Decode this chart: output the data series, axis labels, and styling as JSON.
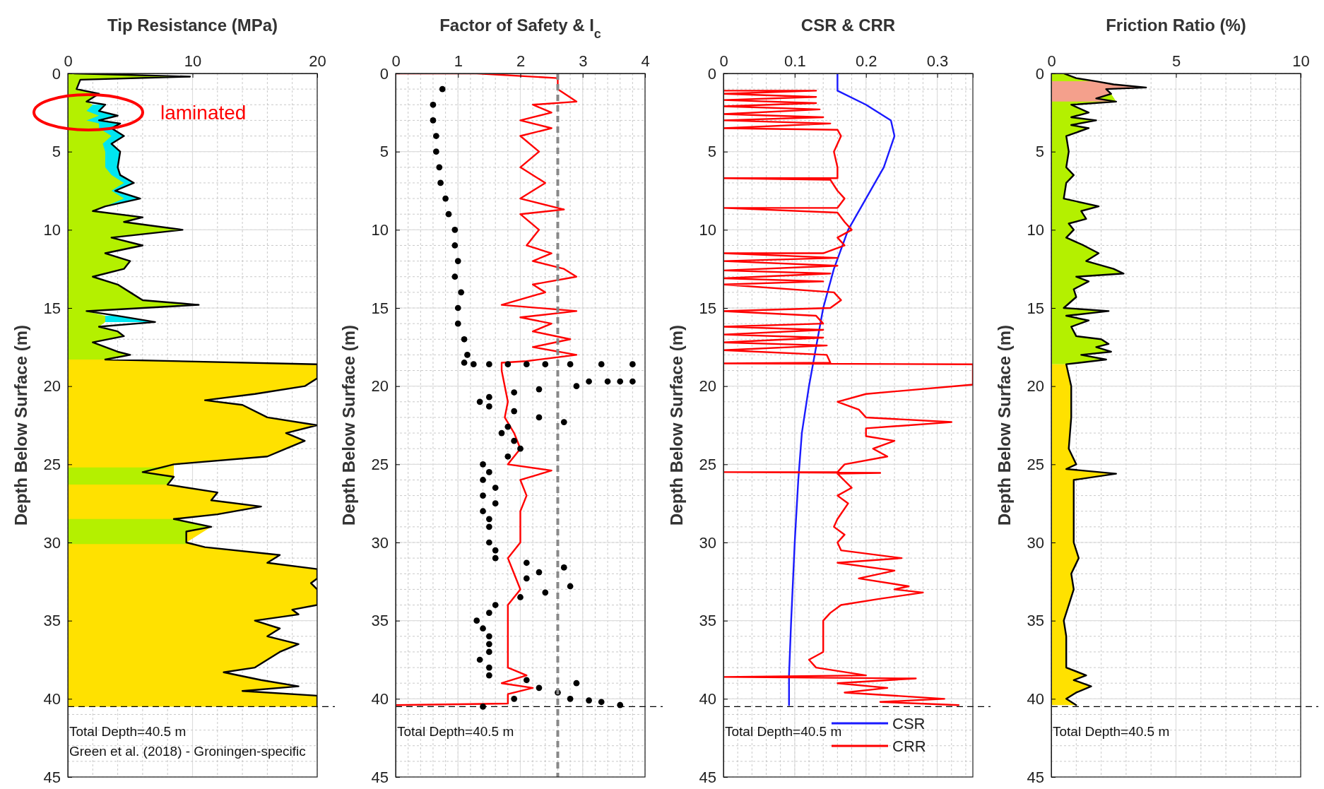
{
  "chart_data": [
    {
      "type": "area",
      "orientation": "horizontal",
      "title": "Tip Resistance (MPa)",
      "ylabel": "Depth Below Surface (m)",
      "xlim": [
        0,
        20
      ],
      "xticks": [
        0,
        10,
        20
      ],
      "ylim": [
        45,
        0
      ],
      "yticks": [
        0,
        5,
        10,
        15,
        20,
        25,
        30,
        35,
        40,
        45
      ],
      "grid": true,
      "ref_lines": [
        {
          "axis": "y",
          "value": 40.5,
          "color": "#000000",
          "line_style": "dashed"
        }
      ],
      "annotations": [
        "Total Depth=40.5 m",
        "Green et al. (2018) - Groningen-specific",
        "laminated"
      ],
      "series": [
        {
          "color": "#00e6f0",
          "values": [
            3,
            2.5,
            4,
            2.5,
            4.2,
            3.5,
            4.5,
            3.5,
            4.2,
            4,
            4.2,
            5.3,
            3.8,
            5.8,
            3
          ],
          "x": [
            2,
            2.4,
            2.7,
            3,
            3.2,
            3.5,
            4,
            4.5,
            5,
            6,
            6.5,
            7,
            7.5,
            8,
            8.5
          ]
        },
        {
          "color": "#00e6f0",
          "values": [
            4,
            7
          ],
          "x": [
            15.5,
            15.9
          ]
        },
        {
          "color": "#b4f000",
          "values": [
            0.5,
            9.8,
            1,
            0.7,
            2.5,
            1.5,
            2,
            1.5,
            2.5,
            1.5,
            2.5,
            2.5,
            3.5,
            2.8,
            3,
            3,
            3.5,
            4.5,
            3.5,
            4.5,
            3,
            2,
            6,
            4.5,
            9.2,
            3.5,
            6,
            3,
            5,
            4.5,
            2,
            4,
            5,
            6,
            10.5,
            1.5,
            3,
            3,
            2.5,
            4,
            4.5,
            2,
            4,
            5,
            3
          ],
          "x": [
            0,
            0.2,
            0.4,
            1,
            1.3,
            1.8,
            2,
            2.4,
            2.7,
            3,
            3.2,
            3.5,
            4,
            4.5,
            5,
            6,
            6.5,
            7,
            7.5,
            8,
            8.5,
            8.8,
            9.2,
            9.5,
            10,
            10.5,
            11,
            11.5,
            12,
            12.5,
            13,
            13.5,
            14,
            14.5,
            14.8,
            15.2,
            15.5,
            15.9,
            16.2,
            16.5,
            16.8,
            17.2,
            17.8,
            18,
            18.3
          ]
        },
        {
          "color": "#ffe100",
          "values": [
            3,
            20,
            20,
            19,
            15,
            11,
            14,
            16,
            20,
            17.5,
            19,
            17.5,
            16,
            8.5,
            8.5,
            8,
            12,
            11.5,
            15.5,
            12,
            8.5,
            11.5,
            9.5,
            11,
            17,
            16,
            20,
            20,
            19.5,
            20,
            20,
            18,
            18.5,
            15,
            17,
            16,
            18.5,
            17,
            16,
            15,
            12.5,
            15.5,
            18.5,
            14,
            20,
            20
          ],
          "x": [
            18.3,
            18.6,
            19.5,
            20,
            20.5,
            20.9,
            21.2,
            22,
            22.5,
            23,
            23.5,
            24,
            24.5,
            25,
            25.8,
            26.3,
            26.8,
            27.3,
            27.7,
            28.2,
            28.5,
            29,
            30,
            30.3,
            30.8,
            31.3,
            31.7,
            32.3,
            32.6,
            33,
            34,
            34.3,
            34.6,
            35,
            35.5,
            36,
            36.5,
            37,
            37.5,
            38,
            38.3,
            38.8,
            39.2,
            39.5,
            39.8,
            40.5
          ]
        },
        {
          "color": "#b4f000",
          "values": [
            8.5,
            6,
            8.5,
            8
          ],
          "x": [
            25.2,
            25.5,
            25.8,
            26.3
          ]
        },
        {
          "color": "#b4f000",
          "values": [
            8.5,
            11.5,
            9.5,
            9.5
          ],
          "x": [
            28.5,
            29,
            29.3,
            30.1
          ]
        },
        {
          "type": "line",
          "color": "#000000",
          "values": [
            0.5,
            9.8,
            1,
            0.7,
            2.5,
            1.5,
            3,
            2.5,
            4,
            2.5,
            4.2,
            3.5,
            4.5,
            3.5,
            4.2,
            4,
            4.2,
            5.3,
            3.8,
            5.8,
            3,
            2,
            6,
            4.5,
            9.2,
            3.5,
            6,
            3,
            5,
            4.5,
            2,
            4,
            5,
            6,
            10.5,
            1.5,
            4,
            7,
            2.5,
            4,
            4.5,
            2,
            4,
            5,
            3,
            20,
            20,
            19,
            15,
            11,
            14,
            16,
            20,
            17.5,
            19,
            17.5,
            16,
            8.5,
            6,
            8.5,
            8,
            12,
            11.5,
            15.5,
            12,
            8.5,
            11.5,
            9.5,
            9.5,
            11,
            17,
            16,
            20,
            20,
            19.5,
            20,
            20,
            18,
            18.5,
            15,
            17,
            16,
            18.5,
            17,
            16,
            15,
            12.5,
            15.5,
            18.5,
            14,
            20,
            20
          ],
          "x": [
            0,
            0.2,
            0.4,
            1,
            1.3,
            1.8,
            2,
            2.4,
            2.7,
            3,
            3.2,
            3.5,
            4,
            4.5,
            5,
            6,
            6.5,
            7,
            7.5,
            8,
            8.5,
            8.8,
            9.2,
            9.5,
            10,
            10.5,
            11,
            11.5,
            12,
            12.5,
            13,
            13.5,
            14,
            14.5,
            14.8,
            15.2,
            15.5,
            15.9,
            16.2,
            16.5,
            16.8,
            17.2,
            17.8,
            18,
            18.3,
            18.6,
            19.5,
            20,
            20.5,
            20.9,
            21.2,
            22,
            22.5,
            23,
            23.5,
            24,
            24.5,
            25,
            25.5,
            25.8,
            26.3,
            26.8,
            27.3,
            27.7,
            28.2,
            28.5,
            29,
            29.3,
            30,
            30.3,
            30.8,
            31.3,
            31.7,
            32.3,
            32.6,
            33,
            34,
            34.3,
            34.6,
            35,
            35.5,
            36,
            36.5,
            37,
            37.5,
            38,
            38.3,
            38.8,
            39.2,
            39.5,
            39.8,
            40.5
          ]
        }
      ]
    },
    {
      "type": "line",
      "title": "Factor of Safety & I$_{c}$",
      "ylabel": "Depth Below Surface (m)",
      "xlim": [
        0,
        4
      ],
      "xticks": [
        0,
        1,
        2,
        3,
        4
      ],
      "ylim": [
        45,
        0
      ],
      "yticks": [
        0,
        5,
        10,
        15,
        20,
        25,
        30,
        35,
        40,
        45
      ],
      "grid": true,
      "ref_lines": [
        {
          "axis": "y",
          "value": 40.5,
          "color": "#000000",
          "line_style": "dashed"
        },
        {
          "axis": "x",
          "value": 2.6,
          "color": "#888888",
          "line_style": "dashed"
        }
      ],
      "annotations": [
        "Total Depth=40.5 m"
      ],
      "series": [
        {
          "type": "scatter",
          "color": "#000000",
          "marker": "circle",
          "x": [
            0.75,
            0.6,
            0.6,
            0.65,
            0.65,
            0.7,
            0.72,
            0.8,
            0.85,
            0.95,
            0.95,
            1.0,
            0.95,
            1.05,
            1.0,
            1.0,
            1.1,
            1.15,
            1.1,
            1.25,
            1.5,
            1.8,
            2.1,
            2.4,
            2.8,
            3.3,
            3.8,
            3.1,
            3.4,
            3.6,
            3.8,
            2.9,
            2.3,
            1.9,
            1.5,
            1.35,
            1.5,
            1.9,
            2.3,
            2.7,
            1.8,
            1.7,
            1.9,
            2.0,
            1.8,
            1.4,
            1.5,
            1.4,
            1.6,
            1.4,
            1.6,
            1.4,
            1.5,
            1.5,
            1.5,
            1.6,
            1.6,
            2.1,
            2.7,
            2.3,
            2.1,
            2.8,
            2.4,
            2.0,
            1.6,
            1.5,
            1.3,
            1.4,
            1.5,
            1.5,
            1.5,
            1.35,
            1.5,
            1.5,
            2.1,
            2.9,
            2.3,
            2.6,
            1.9,
            2.8,
            3.1,
            3.3,
            3.6,
            1.4
          ],
          "values": [
            1,
            2,
            3,
            4,
            5,
            6,
            7,
            8,
            9,
            10,
            11,
            12,
            13,
            14,
            15,
            16,
            17,
            18,
            18.5,
            18.6,
            18.6,
            18.6,
            18.6,
            18.6,
            18.6,
            18.6,
            18.6,
            19.7,
            19.7,
            19.7,
            19.7,
            20,
            20.2,
            20.4,
            20.7,
            21,
            21.3,
            21.6,
            22,
            22.3,
            22.6,
            23,
            23.5,
            24,
            24.5,
            25,
            25.5,
            26,
            26.5,
            27,
            27.5,
            28,
            28.5,
            29,
            30,
            30.5,
            31,
            31.3,
            31.6,
            31.9,
            32.3,
            32.8,
            33.2,
            33.5,
            34,
            34.5,
            35,
            35.5,
            36,
            36.5,
            37,
            37.5,
            38,
            38.5,
            38.8,
            39,
            39.3,
            39.6,
            40,
            40,
            40.1,
            40.2,
            40.4,
            40.5
          ]
        },
        {
          "color": "#ff0000",
          "x": [
            0,
            1.3,
            2.6,
            2.6,
            2.9,
            2.2,
            2.5,
            2,
            2.5,
            2,
            2.3,
            2,
            2.4,
            2,
            2.7,
            2,
            2.3,
            2.1,
            2.5,
            2.2,
            2.7,
            2.9,
            2.2,
            2.4,
            1.7,
            2.9,
            2,
            2.5,
            2.2,
            2.8,
            2.2,
            2.9,
            2.1,
            1.7,
            1.7,
            1.75,
            1.8,
            1.75,
            1.9,
            2,
            1.8,
            2.5,
            2.0,
            2.1,
            2.0,
            2.0,
            2.0,
            1.8,
            1.9,
            2.0,
            1.8,
            1.8,
            1.8,
            1.8,
            1.8,
            2.1,
            1.7,
            2.2,
            1.8,
            1.8,
            0
          ],
          "values": [
            0,
            0,
            0.3,
            1,
            1.8,
            2,
            2.5,
            3,
            3.5,
            4,
            5,
            6,
            7,
            8,
            8.7,
            9,
            10,
            11,
            11.5,
            12,
            12.5,
            13,
            13.5,
            14,
            14.8,
            15.2,
            15.6,
            16,
            16.5,
            17,
            17.5,
            18,
            18.4,
            18.5,
            19,
            20,
            21,
            22,
            23,
            24,
            25,
            25.4,
            26,
            27,
            28,
            29,
            30,
            31,
            32,
            33,
            34,
            35,
            36,
            37,
            38,
            38.5,
            39,
            39.3,
            39.7,
            40.3,
            40.4
          ]
        }
      ]
    },
    {
      "type": "line",
      "title": "CSR & CRR",
      "ylabel": "Depth Below Surface (m)",
      "xlim": [
        0,
        0.35
      ],
      "xticks": [
        0,
        0.1,
        0.2,
        0.3
      ],
      "ylim": [
        45,
        0
      ],
      "yticks": [
        0,
        5,
        10,
        15,
        20,
        25,
        30,
        35,
        40,
        45
      ],
      "grid": true,
      "legend": "bottom right",
      "ref_lines": [
        {
          "axis": "y",
          "value": 40.5,
          "color": "#000000",
          "line_style": "dashed"
        }
      ],
      "annotations": [
        "Total Depth=40.5 m"
      ],
      "series": [
        {
          "name": "CSR",
          "color": "#1a1aff",
          "x": [
            0.16,
            0.16,
            0.2,
            0.235,
            0.24,
            0.225,
            0.2,
            0.175,
            0.155,
            0.14,
            0.13,
            0.12,
            0.11,
            0.105,
            0.1,
            0.095,
            0.092,
            0.092
          ],
          "values": [
            0,
            1.1,
            2,
            3,
            4,
            6,
            8,
            10,
            12.5,
            15,
            17.5,
            20,
            23,
            26,
            30,
            35,
            38.5,
            40.4
          ]
        },
        {
          "name": "CRR",
          "color": "#ff0000",
          "x": [
            0,
            0.13,
            0,
            0.13,
            0,
            0.13,
            0,
            0.135,
            0,
            0.14,
            0,
            0.15,
            0,
            0.16,
            0.165,
            0.155,
            0.16,
            0.16,
            0,
            0.15,
            0.16,
            0.17,
            0.16,
            0,
            0.16,
            0.17,
            0.18,
            0.16,
            0.17,
            0.14,
            0,
            0.16,
            0,
            0.16,
            0,
            0.15,
            0,
            0.14,
            0,
            0.155,
            0.165,
            0.15,
            0,
            0.13,
            0.14,
            0,
            0.14,
            0,
            0.14,
            0,
            0.145,
            0,
            0.145,
            0.15,
            0,
            0.35,
            0.35,
            0.2,
            0.16,
            0.19,
            0.2,
            0.32,
            0.2,
            0.2,
            0.24,
            0.21,
            0.23,
            0.17,
            0.16,
            0,
            0.22,
            0.16,
            0.18,
            0.16,
            0.175,
            0.16,
            0.155,
            0.17,
            0.16,
            0.165,
            0.25,
            0.16,
            0.24,
            0.19,
            0.26,
            0.24,
            0.28,
            0.22,
            0.165,
            0.15,
            0.14,
            0.14,
            0.14,
            0.14,
            0.12,
            0.13,
            0.2,
            0,
            0.27,
            0.16,
            0.23,
            0.17,
            0.31,
            0.22,
            0.33
          ],
          "values": [
            1.1,
            1.1,
            1.3,
            1.5,
            1.7,
            1.9,
            2.1,
            2.3,
            2.6,
            2.8,
            3,
            3.2,
            3.5,
            3.6,
            4,
            5,
            6,
            6.7,
            6.7,
            6.8,
            7.5,
            8,
            8.6,
            8.6,
            8.9,
            9.5,
            10,
            10.5,
            11,
            11.5,
            11.5,
            11.8,
            12,
            12.3,
            12.6,
            12.8,
            13.1,
            13.3,
            13.5,
            14,
            14.5,
            15,
            15.2,
            15.5,
            16,
            16.2,
            16.4,
            16.7,
            16.9,
            17.2,
            17.4,
            17.7,
            18,
            18.5,
            18.55,
            18.6,
            19.9,
            20.5,
            21,
            21.5,
            22,
            22.3,
            22.7,
            23.2,
            23.5,
            24,
            24.5,
            25,
            25.5,
            25.5,
            25.55,
            25.6,
            26.5,
            27,
            27.5,
            28.5,
            29,
            29.5,
            30,
            30.5,
            31,
            31.3,
            31.8,
            32.3,
            32.8,
            33,
            33.2,
            33.6,
            34,
            34.5,
            35,
            35.5,
            36,
            37,
            37.5,
            38,
            38.5,
            38.6,
            38.7,
            39,
            39.3,
            39.6,
            40,
            40.2,
            40.4
          ]
        }
      ]
    },
    {
      "type": "area",
      "orientation": "horizontal",
      "title": "Friction Ratio (%)",
      "ylabel": "Depth Below Surface (m)",
      "xlim": [
        0,
        10
      ],
      "xticks": [
        0,
        5,
        10
      ],
      "ylim": [
        45,
        0
      ],
      "yticks": [
        0,
        5,
        10,
        15,
        20,
        25,
        30,
        35,
        40,
        45
      ],
      "grid": true,
      "ref_lines": [
        {
          "axis": "y",
          "value": 40.5,
          "color": "#000000",
          "line_style": "dashed"
        }
      ],
      "annotations": [
        "Total Depth=40.5 m"
      ],
      "series": [
        {
          "color": "#b4f000",
          "values": [
            0.5,
            1,
            1.8,
            2.5,
            3.8,
            2.2,
            2.4,
            2.6,
            0.8,
            1.5,
            0.8,
            1.8,
            0.8,
            1.5,
            0.6,
            0.7,
            0.6,
            0.9,
            0.6,
            0.5,
            1.9,
            1.2,
            1.4,
            0.7,
            0.9,
            0.6,
            1.3,
            1.9,
            1.4,
            2.5,
            2.9,
            1.0,
            1.5,
            0.9,
            1.0,
            0.5,
            2.3,
            0.6,
            1.5,
            0.8,
            1.0,
            2,
            2.3,
            1.8,
            2.4,
            1.2,
            2.2,
            0.6
          ],
          "x": [
            0,
            0.3,
            0.5,
            0.7,
            0.9,
            1,
            1.3,
            1.8,
            2,
            2.5,
            2.8,
            3,
            3.3,
            3.5,
            4,
            5,
            6,
            6.5,
            7,
            8,
            8.5,
            8.8,
            9.3,
            9.6,
            10,
            10.5,
            11,
            11.5,
            12,
            12.5,
            12.8,
            13,
            13.3,
            13.8,
            14.3,
            15,
            15.2,
            15.5,
            15.8,
            16.2,
            16.8,
            17,
            17.3,
            17.5,
            17.8,
            18,
            18.3,
            18.6
          ]
        },
        {
          "color": "#f4a08c",
          "values": [
            1.8,
            2.5,
            3.8,
            2.2,
            2.4,
            1.8,
            2.6
          ],
          "x": [
            0.5,
            0.7,
            0.9,
            1,
            1.3,
            1.6,
            1.8
          ]
        },
        {
          "color": "#ffe100",
          "values": [
            0.6,
            0.8,
            0.8,
            0.7,
            1.0,
            0.6,
            2.6,
            0.9,
            0.9,
            0.9,
            0.9,
            1.1,
            0.8,
            0.9,
            0.7,
            0.5,
            0.6,
            0.6,
            0.6,
            1.4,
            0.9,
            1.6,
            1.0,
            0.6,
            1.0
          ],
          "x": [
            18.6,
            20,
            22,
            24,
            25,
            25.3,
            25.6,
            26,
            27,
            28,
            30,
            31,
            32,
            33,
            34,
            35,
            36,
            37,
            38,
            38.5,
            38.8,
            39.2,
            39.6,
            40,
            40.4
          ]
        },
        {
          "type": "line",
          "color": "#000000",
          "values": [
            0.5,
            1,
            1.8,
            2.5,
            3.8,
            2.2,
            2.4,
            1.8,
            2.6,
            0.8,
            1.5,
            0.8,
            1.8,
            0.8,
            1.5,
            0.6,
            0.7,
            0.6,
            0.9,
            0.6,
            0.5,
            1.9,
            1.2,
            1.4,
            0.7,
            0.9,
            0.6,
            1.3,
            1.9,
            1.4,
            2.5,
            2.9,
            1.0,
            1.5,
            0.9,
            1.0,
            0.5,
            2.3,
            0.6,
            1.5,
            0.8,
            1.0,
            2,
            2.3,
            1.8,
            2.4,
            1.2,
            2.2,
            0.6,
            0.8,
            0.8,
            0.7,
            1.0,
            0.6,
            2.6,
            0.9,
            0.9,
            0.9,
            0.9,
            1.1,
            0.8,
            0.9,
            0.7,
            0.5,
            0.6,
            0.6,
            0.6,
            1.4,
            0.9,
            1.6,
            1.0,
            0.6,
            1.0
          ],
          "x": [
            0,
            0.3,
            0.5,
            0.7,
            0.9,
            1,
            1.3,
            1.6,
            1.8,
            2,
            2.5,
            2.8,
            3,
            3.3,
            3.5,
            4,
            5,
            6,
            6.5,
            7,
            8,
            8.5,
            8.8,
            9.3,
            9.6,
            10,
            10.5,
            11,
            11.5,
            12,
            12.5,
            12.8,
            13,
            13.3,
            13.8,
            14.3,
            15,
            15.2,
            15.5,
            15.8,
            16.2,
            16.8,
            17,
            17.3,
            17.5,
            17.8,
            18,
            18.3,
            18.6,
            20,
            22,
            24,
            25,
            25.3,
            25.6,
            26,
            27,
            28,
            30,
            31,
            32,
            33,
            34,
            35,
            36,
            37,
            38,
            38.5,
            38.8,
            39.2,
            39.6,
            40,
            40.4
          ]
        }
      ]
    }
  ]
}
